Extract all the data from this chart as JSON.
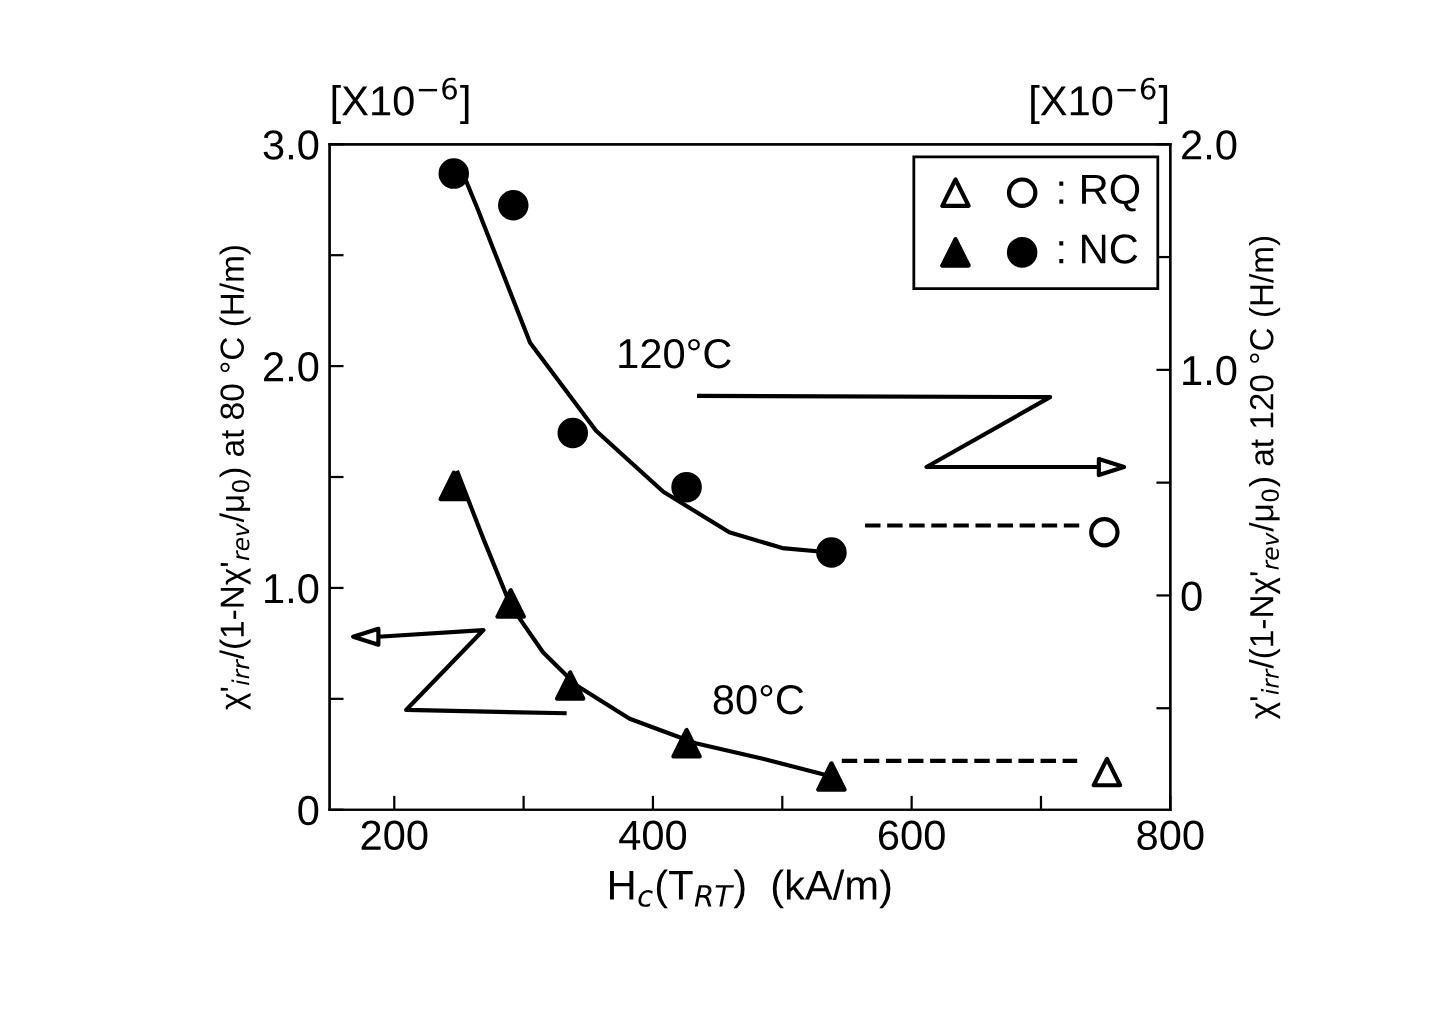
{
  "chart_data": {
    "type": "scatter",
    "xlabel": "H$_{c}$(T$_{RT}$)  (kA/m)",
    "ylabel": "χ'$_{irr}$/(1-Nχ'$_{rev}$/μ$_{0}$) at 80 °C (H/m)",
    "y2label": "χ'$_{irr}$/(1-Nχ'$_{rev}$/μ$_{0}$) at 120 °C (H/m)",
    "xlim": [
      150,
      800
    ],
    "xticks": [
      200,
      {
        "value": 300,
        "label": null
      },
      400,
      {
        "value": 500,
        "label": null
      },
      600,
      {
        "value": 700,
        "label": null
      },
      800
    ],
    "ylim": [
      0,
      3.0
    ],
    "yticks": [
      {
        "value": 0,
        "label": "0"
      },
      {
        "value": 0.5,
        "label": null
      },
      {
        "value": 1.0,
        "label": "1.0"
      },
      {
        "value": 1.5,
        "label": null
      },
      {
        "value": 2.0,
        "label": "2.0"
      },
      {
        "value": 2.5,
        "label": null
      },
      {
        "value": 3.0,
        "label": "3.0"
      }
    ],
    "y2lim": [
      -0.95,
      2.0
    ],
    "y2ticks": [
      {
        "value": -0.5,
        "label": null
      },
      {
        "value": 0,
        "label": "0"
      },
      {
        "value": 0.5,
        "label": null
      },
      {
        "value": 1.0,
        "label": "1.0"
      },
      {
        "value": 1.5,
        "label": null
      },
      {
        "value": 2.0,
        "label": "2.0"
      }
    ],
    "legend": "top right",
    "grid": false,
    "annotations": [
      "[X10$^{−6}$]",
      "[X10$^{−6}$]",
      "120°C",
      "80°C"
    ],
    "series": [
      {
        "type": "line",
        "color": "#000000",
        "marker": "none",
        "line_style": "solid",
        "axis": "y2",
        "x": [
          251,
          264,
          305,
          356,
          408,
          459,
          500,
          538
        ],
        "values": [
          1.9,
          1.72,
          1.12,
          0.73,
          0.46,
          0.28,
          0.21,
          0.19
        ]
      },
      {
        "type": "line",
        "color": "#000000",
        "marker": "none",
        "line_style": "solid",
        "x": [
          249,
          269,
          290,
          315,
          341,
          382,
          433,
          485,
          538
        ],
        "values": [
          1.52,
          1.22,
          0.92,
          0.71,
          0.56,
          0.41,
          0.3,
          0.23,
          0.15
        ]
      },
      {
        "type": "line",
        "color": "#000000",
        "marker": "none",
        "line_style": "dashed",
        "axis": "y2",
        "x": [
          564,
          731
        ],
        "values": [
          0.31,
          0.31
        ]
      },
      {
        "type": "line",
        "color": "#000000",
        "marker": "none",
        "line_style": "dashed",
        "x": [
          546,
          728
        ],
        "values": [
          0.22,
          0.22
        ]
      },
      {
        "color": "#ffffff",
        "marker": "triangle",
        "x": [
          751
        ],
        "values": [
          0.17
        ]
      },
      {
        "name": ": RQ",
        "color": "#ffffff",
        "marker": "circle",
        "axis": "y2",
        "x": [
          749
        ],
        "values": [
          0.28
        ]
      },
      {
        "color": "#000000",
        "marker": "triangle",
        "x": [
          246,
          290,
          336,
          426,
          538
        ],
        "values": [
          1.46,
          0.93,
          0.56,
          0.3,
          0.15
        ]
      },
      {
        "name": ": NC",
        "color": "#000000",
        "marker": "circle",
        "axis": "y2",
        "x": [
          246,
          292,
          338,
          426,
          538
        ],
        "values": [
          1.87,
          1.73,
          0.72,
          0.48,
          0.19
        ]
      }
    ]
  }
}
